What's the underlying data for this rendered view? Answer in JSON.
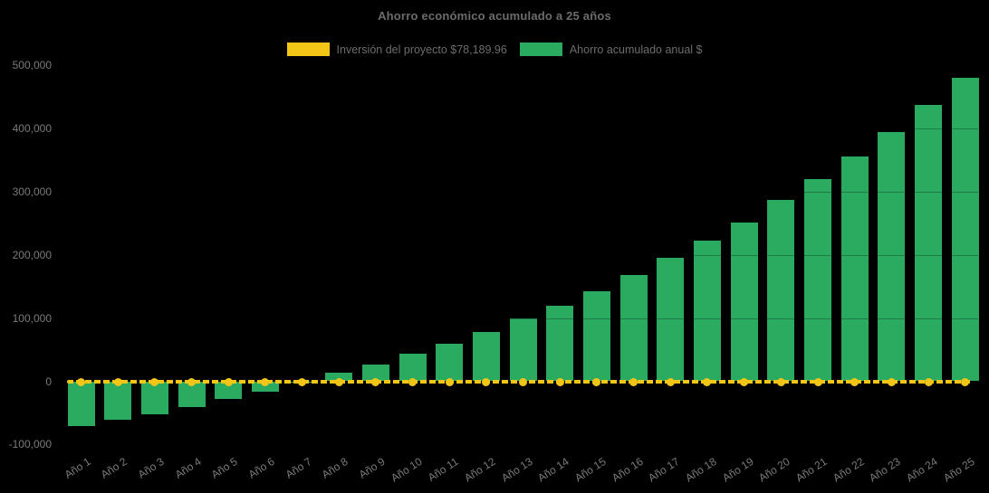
{
  "chart": {
    "title": "Ahorro económico acumulado a 25 años"
  },
  "colors": {
    "background": "#000000",
    "investment_line": "#F2C517",
    "savings_bar": "#2AAB60",
    "title_text": "#6C6C6C",
    "axis_text": "#7A7A7A"
  },
  "chart_data": {
    "type": "bar",
    "title": "Ahorro económico acumulado a 25 años",
    "categories": [
      "Año 1",
      "Año 2",
      "Año 3",
      "Año 4",
      "Año 5",
      "Año 6",
      "Año 7",
      "Año 8",
      "Año 9",
      "Año 10",
      "Año 11",
      "Año 12",
      "Año 13",
      "Año 14",
      "Año 15",
      "Año 16",
      "Año 17",
      "Año 18",
      "Año 19",
      "Año 20",
      "Año 21",
      "Año 22",
      "Año 23",
      "Año 24",
      "Año 25"
    ],
    "series": [
      {
        "name": "Inversión del proyecto $78,189.96",
        "type": "line",
        "style": "dashed-with-round-markers",
        "color": "#F2C517",
        "values": [
          0,
          0,
          0,
          0,
          0,
          0,
          0,
          0,
          0,
          0,
          0,
          0,
          0,
          0,
          0,
          0,
          0,
          0,
          0,
          0,
          0,
          0,
          0,
          0,
          0
        ]
      },
      {
        "name": "Ahorro acumulado anual $",
        "type": "bar",
        "color": "#2AAB60",
        "values": [
          -71000,
          -61000,
          -52000,
          -41000,
          -28000,
          -17000,
          -2000,
          13000,
          27000,
          43000,
          60000,
          78000,
          99000,
          120000,
          143000,
          168000,
          195000,
          222000,
          252000,
          287000,
          320000,
          356000,
          394000,
          437000,
          481000
        ]
      }
    ],
    "xlabel": "",
    "ylabel": "",
    "ylim": [
      -100000,
      500000
    ],
    "ytick_step": 100000,
    "ytick_labels": [
      "-100,000",
      "0",
      "100,000",
      "200,000",
      "300,000",
      "400,000",
      "500,000"
    ],
    "grid": false,
    "legend_position": "top-center"
  }
}
